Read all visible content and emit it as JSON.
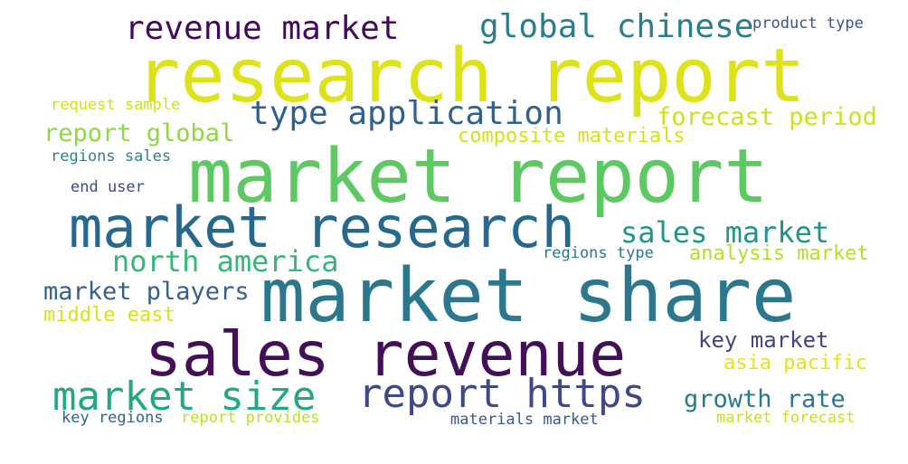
{
  "words": [
    {
      "text": "research report",
      "color": "#dde318"
    },
    {
      "text": "market report",
      "color": "#5ec962"
    },
    {
      "text": "market research",
      "color": "#26688e"
    },
    {
      "text": "market share",
      "color": "#2b778e"
    },
    {
      "text": "sales revenue",
      "color": "#440e58"
    },
    {
      "text": "market size",
      "color": "#22a884"
    },
    {
      "text": "report https",
      "color": "#3f4889"
    },
    {
      "text": "revenue market",
      "color": "#45085f"
    },
    {
      "text": "global chinese",
      "color": "#277f8e"
    },
    {
      "text": "type application",
      "color": "#30608d"
    },
    {
      "text": "forecast period",
      "color": "#cde11d"
    },
    {
      "text": "report global",
      "color": "#90d743"
    },
    {
      "text": "composite materials",
      "color": "#d5e21a"
    },
    {
      "text": "sales market",
      "color": "#1f958b"
    },
    {
      "text": "north america",
      "color": "#35b779"
    },
    {
      "text": "market players",
      "color": "#355f8d"
    },
    {
      "text": "analysis market",
      "color": "#b5de2b"
    },
    {
      "text": "key market",
      "color": "#414487"
    },
    {
      "text": "growth rate",
      "color": "#2a788e"
    },
    {
      "text": "asia pacific",
      "color": "#e5e419"
    },
    {
      "text": "middle east",
      "color": "#d8e219"
    },
    {
      "text": "product type",
      "color": "#3b528b"
    },
    {
      "text": "request sample",
      "color": "#d0e11c"
    },
    {
      "text": "regions sales",
      "color": "#25858e"
    },
    {
      "text": "end user",
      "color": "#3e4a89"
    },
    {
      "text": "regions type",
      "color": "#2a788e"
    },
    {
      "text": "key regions",
      "color": "#33638d"
    },
    {
      "text": "report provides",
      "color": "#bddf26"
    },
    {
      "text": "materials market",
      "color": "#38598c"
    },
    {
      "text": "market forecast",
      "color": "#c8e020"
    }
  ]
}
